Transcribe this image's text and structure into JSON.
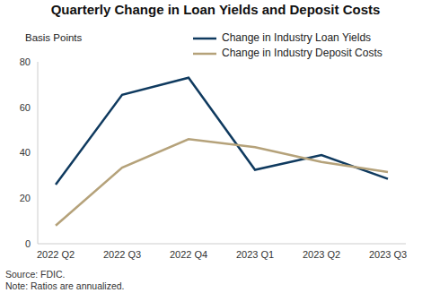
{
  "chart_data": {
    "type": "line",
    "title": "Quarterly Change in Loan Yields and Deposit Costs",
    "y_label": "Basis Points",
    "categories": [
      "2022 Q2",
      "2022 Q3",
      "2022 Q4",
      "2023 Q1",
      "2023 Q2",
      "2023 Q3"
    ],
    "series": [
      {
        "name": "Change in Industry Loan Yields",
        "color": "#0f3a5f",
        "values": [
          26,
          65.5,
          73,
          32.5,
          39,
          28.5
        ]
      },
      {
        "name": "Change in Industry Deposit Costs",
        "color": "#b5a27a",
        "values": [
          8,
          33.5,
          46,
          42.5,
          36,
          31.5
        ]
      }
    ],
    "ylim": [
      0,
      80
    ],
    "yticks": [
      0,
      20,
      40,
      60,
      80
    ],
    "grid": false,
    "legend": "top right",
    "source": "Source: FDIC.",
    "note": "Note: Ratios are annualized."
  }
}
